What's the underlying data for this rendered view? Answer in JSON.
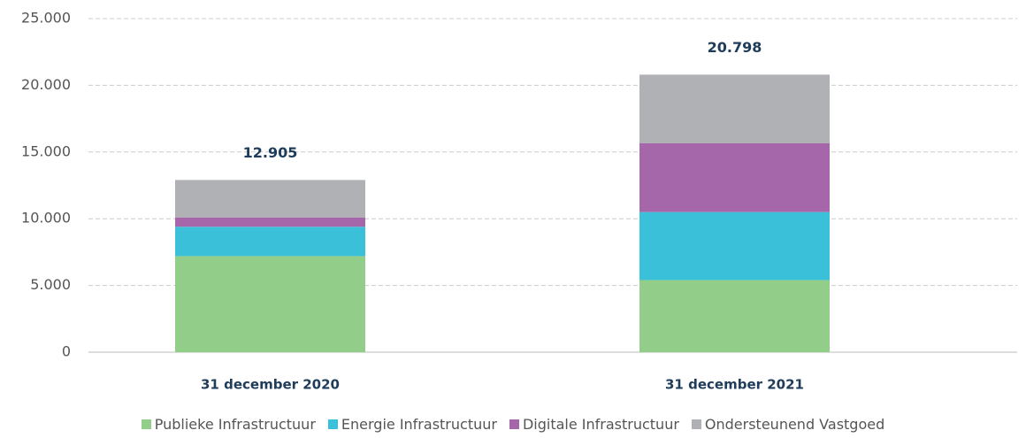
{
  "chart_data": {
    "type": "stacked-bar",
    "categories": [
      "31 december 2020",
      "31 december 2021"
    ],
    "series": [
      {
        "name": "Publieke Infrastructuur",
        "color": "#92cd8a",
        "values": [
          7200,
          5400
        ]
      },
      {
        "name": "Energie Infrastructuur",
        "color": "#3ac0d8",
        "values": [
          2200,
          5100
        ]
      },
      {
        "name": "Digitale Infrastructuur",
        "color": "#a667aa",
        "values": [
          700,
          5150
        ]
      },
      {
        "name": "Ondersteunend Vastgoed",
        "color": "#afb1b4",
        "values": [
          2805,
          5148
        ]
      }
    ],
    "totals": [
      12905,
      20798
    ],
    "totals_value_labels": [
      "12.905",
      "20.798"
    ],
    "ylim": [
      0,
      25000
    ],
    "yticks": [
      0,
      {
        "value": 5000,
        "label": "5.000"
      },
      {
        "value": 10000,
        "label": "10.000"
      },
      {
        "value": 15000,
        "label": "15.000"
      },
      {
        "value": 20000,
        "label": "20.000"
      },
      {
        "value": 25000,
        "label": "25.000"
      }
    ],
    "grid": true,
    "legend": "bottom"
  }
}
